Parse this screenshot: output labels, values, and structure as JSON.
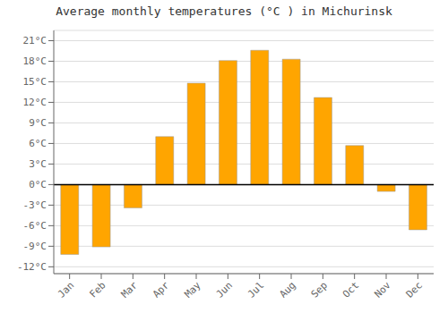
{
  "chart_data": {
    "type": "bar",
    "title": "Average monthly temperatures (°C ) in Michurinsk",
    "categories": [
      "Jan",
      "Feb",
      "Mar",
      "Apr",
      "May",
      "Jun",
      "Jul",
      "Aug",
      "Sep",
      "Oct",
      "Nov",
      "Dec"
    ],
    "values": [
      -10.2,
      -9.1,
      -3.4,
      7.0,
      14.8,
      18.1,
      19.6,
      18.3,
      12.7,
      5.7,
      -1.0,
      -6.6
    ],
    "color": "#FFA500",
    "ylim": [
      -13,
      22.5
    ],
    "yticks": [
      {
        "value": -12,
        "label": "-12°C"
      },
      {
        "value": -9,
        "label": "-9°C"
      },
      {
        "value": -6,
        "label": "-6°C"
      },
      {
        "value": -3,
        "label": "-3°C"
      },
      {
        "value": 0,
        "label": "0°C"
      },
      {
        "value": 3,
        "label": "3°C"
      },
      {
        "value": 6,
        "label": "6°C"
      },
      {
        "value": 9,
        "label": "9°C"
      },
      {
        "value": 12,
        "label": "12°C"
      },
      {
        "value": 15,
        "label": "15°C"
      },
      {
        "value": 18,
        "label": "18°C"
      },
      {
        "value": 21,
        "label": "21°C"
      }
    ],
    "grid": true
  }
}
